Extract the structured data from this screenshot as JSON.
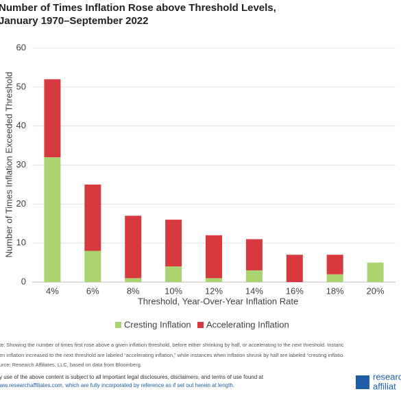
{
  "chart_data": {
    "type": "stacked-bar",
    "title": [
      "Number of Times Inflation Rose above Threshold Levels,",
      "January 1970–September 2022"
    ],
    "y_label": "Number of Times Inflation Exceeded Threshold",
    "x_label": "Threshold, Year-Over-Year Inflation Rate",
    "categories": [
      "4%",
      "6%",
      "8%",
      "10%",
      "12%",
      "14%",
      "16%",
      "18%",
      "20%"
    ],
    "series": [
      {
        "name": "Cresting Inflation",
        "color": "#a9d46f",
        "values": [
          32,
          8,
          1,
          4,
          1,
          3,
          0,
          2,
          5
        ]
      },
      {
        "name": "Accelerating Inflation",
        "color": "#d63a3f",
        "values": [
          20,
          17,
          16,
          12,
          11,
          8,
          7,
          5,
          0
        ]
      }
    ],
    "ylim": [
      0,
      60
    ],
    "yticks": [
      0,
      10,
      20,
      30,
      40,
      50,
      60
    ],
    "grid": true,
    "legend": "bottom"
  },
  "notes": [
    "te: Showing the number of times first rose above a given inflation threshold, before either shrinking by half, or accelerating to the next threshold. Instanc",
    "en inflation increased to the next threshold are labeled “accelerating inflation,” while instances when inflation shrunk by half are labeled “cresting inflatio",
    "urce: Research Affiliates, LLC, based on data from Bloomberg."
  ],
  "disclaimer": [
    "y use of the above content is subject to all important legal disclosures, disclaimers, and terms of use found at",
    "www.researchaffiliates.com, which are fully incorporated by reference as if set out herein at length."
  ],
  "logo": [
    "research",
    "affiliat"
  ]
}
